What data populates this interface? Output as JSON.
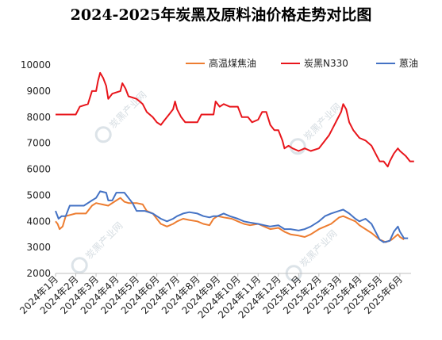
{
  "chart_data": {
    "type": "line",
    "title": "2024-2025年炭黑及原料油价格走势对比图",
    "watermark": "炭黑产业网",
    "ylim": [
      2000,
      10000
    ],
    "yticks": [
      "2000",
      "3000",
      "4000",
      "5000",
      "6000",
      "7000",
      "8000",
      "9000",
      "10000"
    ],
    "xtick_labels": [
      "2024年1月",
      "2024年2月",
      "2024年3月",
      "2024年4月",
      "2024年5月",
      "2024年6月",
      "2024年7月",
      "2024年8月",
      "2024年9月",
      "2024年10月",
      "2024年11月",
      "2024年12月",
      "2025年1月",
      "2025年2月",
      "2025年3月",
      "2025年4月",
      "2025年5月",
      "2025年6月"
    ],
    "grid": false,
    "legend_position": "top-right",
    "series": [
      {
        "name": "高温煤焦油",
        "color": "#ed7d31",
        "points": [
          [
            0,
            4000
          ],
          [
            0.1,
            3900
          ],
          [
            0.2,
            3700
          ],
          [
            0.35,
            3800
          ],
          [
            0.5,
            4200
          ],
          [
            1.0,
            4300
          ],
          [
            1.5,
            4300
          ],
          [
            1.8,
            4600
          ],
          [
            2.0,
            4700
          ],
          [
            2.3,
            4650
          ],
          [
            2.6,
            4600
          ],
          [
            3.0,
            4800
          ],
          [
            3.2,
            4900
          ],
          [
            3.4,
            4750
          ],
          [
            3.6,
            4700
          ],
          [
            4.0,
            4700
          ],
          [
            4.3,
            4650
          ],
          [
            4.5,
            4400
          ],
          [
            4.8,
            4300
          ],
          [
            5.0,
            4100
          ],
          [
            5.2,
            3900
          ],
          [
            5.5,
            3800
          ],
          [
            5.8,
            3900
          ],
          [
            6.0,
            4000
          ],
          [
            6.3,
            4100
          ],
          [
            6.6,
            4050
          ],
          [
            7.0,
            4000
          ],
          [
            7.3,
            3900
          ],
          [
            7.6,
            3850
          ],
          [
            7.8,
            4100
          ],
          [
            8.0,
            4200
          ],
          [
            8.3,
            4150
          ],
          [
            8.7,
            4100
          ],
          [
            9.0,
            4000
          ],
          [
            9.3,
            3900
          ],
          [
            9.6,
            3850
          ],
          [
            10.0,
            3900
          ],
          [
            10.3,
            3800
          ],
          [
            10.6,
            3700
          ],
          [
            11.0,
            3750
          ],
          [
            11.3,
            3600
          ],
          [
            11.6,
            3500
          ],
          [
            12.0,
            3450
          ],
          [
            12.3,
            3400
          ],
          [
            12.6,
            3500
          ],
          [
            13.0,
            3700
          ],
          [
            13.3,
            3800
          ],
          [
            13.6,
            3900
          ],
          [
            14.0,
            4150
          ],
          [
            14.2,
            4200
          ],
          [
            14.5,
            4100
          ],
          [
            14.8,
            4000
          ],
          [
            15.0,
            3850
          ],
          [
            15.3,
            3700
          ],
          [
            15.6,
            3550
          ],
          [
            16.0,
            3300
          ],
          [
            16.3,
            3200
          ],
          [
            16.6,
            3300
          ],
          [
            16.9,
            3500
          ],
          [
            17.0,
            3400
          ],
          [
            17.2,
            3300
          ]
        ]
      },
      {
        "name": "炭黑N330",
        "color": "#e8151b",
        "points": [
          [
            0,
            8100
          ],
          [
            0.6,
            8100
          ],
          [
            1.0,
            8100
          ],
          [
            1.2,
            8400
          ],
          [
            1.6,
            8500
          ],
          [
            1.8,
            9000
          ],
          [
            2.0,
            9000
          ],
          [
            2.1,
            9400
          ],
          [
            2.2,
            9700
          ],
          [
            2.35,
            9500
          ],
          [
            2.5,
            9200
          ],
          [
            2.6,
            8700
          ],
          [
            2.8,
            8900
          ],
          [
            3.2,
            9000
          ],
          [
            3.3,
            9300
          ],
          [
            3.45,
            9100
          ],
          [
            3.6,
            8800
          ],
          [
            4.0,
            8700
          ],
          [
            4.3,
            8500
          ],
          [
            4.5,
            8200
          ],
          [
            4.8,
            8000
          ],
          [
            5.0,
            7800
          ],
          [
            5.2,
            7700
          ],
          [
            5.4,
            7900
          ],
          [
            5.6,
            8100
          ],
          [
            5.8,
            8300
          ],
          [
            5.9,
            8600
          ],
          [
            6.0,
            8300
          ],
          [
            6.2,
            8000
          ],
          [
            6.4,
            7800
          ],
          [
            6.8,
            7800
          ],
          [
            7.0,
            7800
          ],
          [
            7.2,
            8100
          ],
          [
            7.5,
            8100
          ],
          [
            7.8,
            8100
          ],
          [
            7.9,
            8600
          ],
          [
            8.1,
            8400
          ],
          [
            8.3,
            8500
          ],
          [
            8.6,
            8400
          ],
          [
            9.0,
            8400
          ],
          [
            9.2,
            8000
          ],
          [
            9.5,
            8000
          ],
          [
            9.7,
            7800
          ],
          [
            10.0,
            7900
          ],
          [
            10.2,
            8200
          ],
          [
            10.4,
            8200
          ],
          [
            10.6,
            7700
          ],
          [
            10.8,
            7500
          ],
          [
            11.0,
            7500
          ],
          [
            11.2,
            7100
          ],
          [
            11.3,
            6800
          ],
          [
            11.5,
            6900
          ],
          [
            11.7,
            6800
          ],
          [
            12.0,
            6700
          ],
          [
            12.3,
            6800
          ],
          [
            12.6,
            6700
          ],
          [
            13.0,
            6800
          ],
          [
            13.2,
            7000
          ],
          [
            13.5,
            7300
          ],
          [
            13.7,
            7600
          ],
          [
            13.9,
            7900
          ],
          [
            14.1,
            8200
          ],
          [
            14.2,
            8500
          ],
          [
            14.35,
            8300
          ],
          [
            14.5,
            7800
          ],
          [
            14.7,
            7500
          ],
          [
            15.0,
            7200
          ],
          [
            15.3,
            7100
          ],
          [
            15.6,
            6900
          ],
          [
            15.8,
            6600
          ],
          [
            16.0,
            6300
          ],
          [
            16.2,
            6300
          ],
          [
            16.4,
            6100
          ],
          [
            16.5,
            6300
          ],
          [
            16.7,
            6600
          ],
          [
            16.9,
            6800
          ],
          [
            17.0,
            6700
          ],
          [
            17.3,
            6500
          ],
          [
            17.5,
            6300
          ],
          [
            17.7,
            6300
          ]
        ]
      },
      {
        "name": "蒽油",
        "color": "#4472c4",
        "points": [
          [
            0,
            4400
          ],
          [
            0.15,
            4100
          ],
          [
            0.3,
            4200
          ],
          [
            0.5,
            4200
          ],
          [
            0.7,
            4600
          ],
          [
            1.0,
            4600
          ],
          [
            1.4,
            4600
          ],
          [
            1.8,
            4800
          ],
          [
            2.0,
            4900
          ],
          [
            2.2,
            5150
          ],
          [
            2.5,
            5100
          ],
          [
            2.6,
            4800
          ],
          [
            2.8,
            4800
          ],
          [
            3.0,
            5100
          ],
          [
            3.4,
            5100
          ],
          [
            3.6,
            4900
          ],
          [
            3.8,
            4700
          ],
          [
            4.0,
            4400
          ],
          [
            4.4,
            4400
          ],
          [
            4.8,
            4300
          ],
          [
            5.0,
            4200
          ],
          [
            5.2,
            4100
          ],
          [
            5.5,
            4000
          ],
          [
            5.8,
            4100
          ],
          [
            6.0,
            4200
          ],
          [
            6.3,
            4300
          ],
          [
            6.6,
            4350
          ],
          [
            7.0,
            4300
          ],
          [
            7.3,
            4200
          ],
          [
            7.6,
            4150
          ],
          [
            7.8,
            4200
          ],
          [
            8.0,
            4200
          ],
          [
            8.3,
            4300
          ],
          [
            8.6,
            4200
          ],
          [
            9.0,
            4100
          ],
          [
            9.3,
            4000
          ],
          [
            9.6,
            3950
          ],
          [
            10.0,
            3900
          ],
          [
            10.3,
            3850
          ],
          [
            10.6,
            3800
          ],
          [
            11.0,
            3850
          ],
          [
            11.3,
            3700
          ],
          [
            11.6,
            3700
          ],
          [
            12.0,
            3650
          ],
          [
            12.3,
            3700
          ],
          [
            12.6,
            3800
          ],
          [
            13.0,
            4000
          ],
          [
            13.3,
            4200
          ],
          [
            13.6,
            4300
          ],
          [
            14.0,
            4400
          ],
          [
            14.2,
            4450
          ],
          [
            14.5,
            4300
          ],
          [
            14.8,
            4100
          ],
          [
            15.0,
            4000
          ],
          [
            15.3,
            4100
          ],
          [
            15.6,
            3900
          ],
          [
            15.8,
            3600
          ],
          [
            16.0,
            3300
          ],
          [
            16.2,
            3200
          ],
          [
            16.5,
            3250
          ],
          [
            16.7,
            3600
          ],
          [
            16.9,
            3800
          ],
          [
            17.0,
            3600
          ],
          [
            17.2,
            3350
          ],
          [
            17.4,
            3350
          ]
        ]
      }
    ]
  }
}
